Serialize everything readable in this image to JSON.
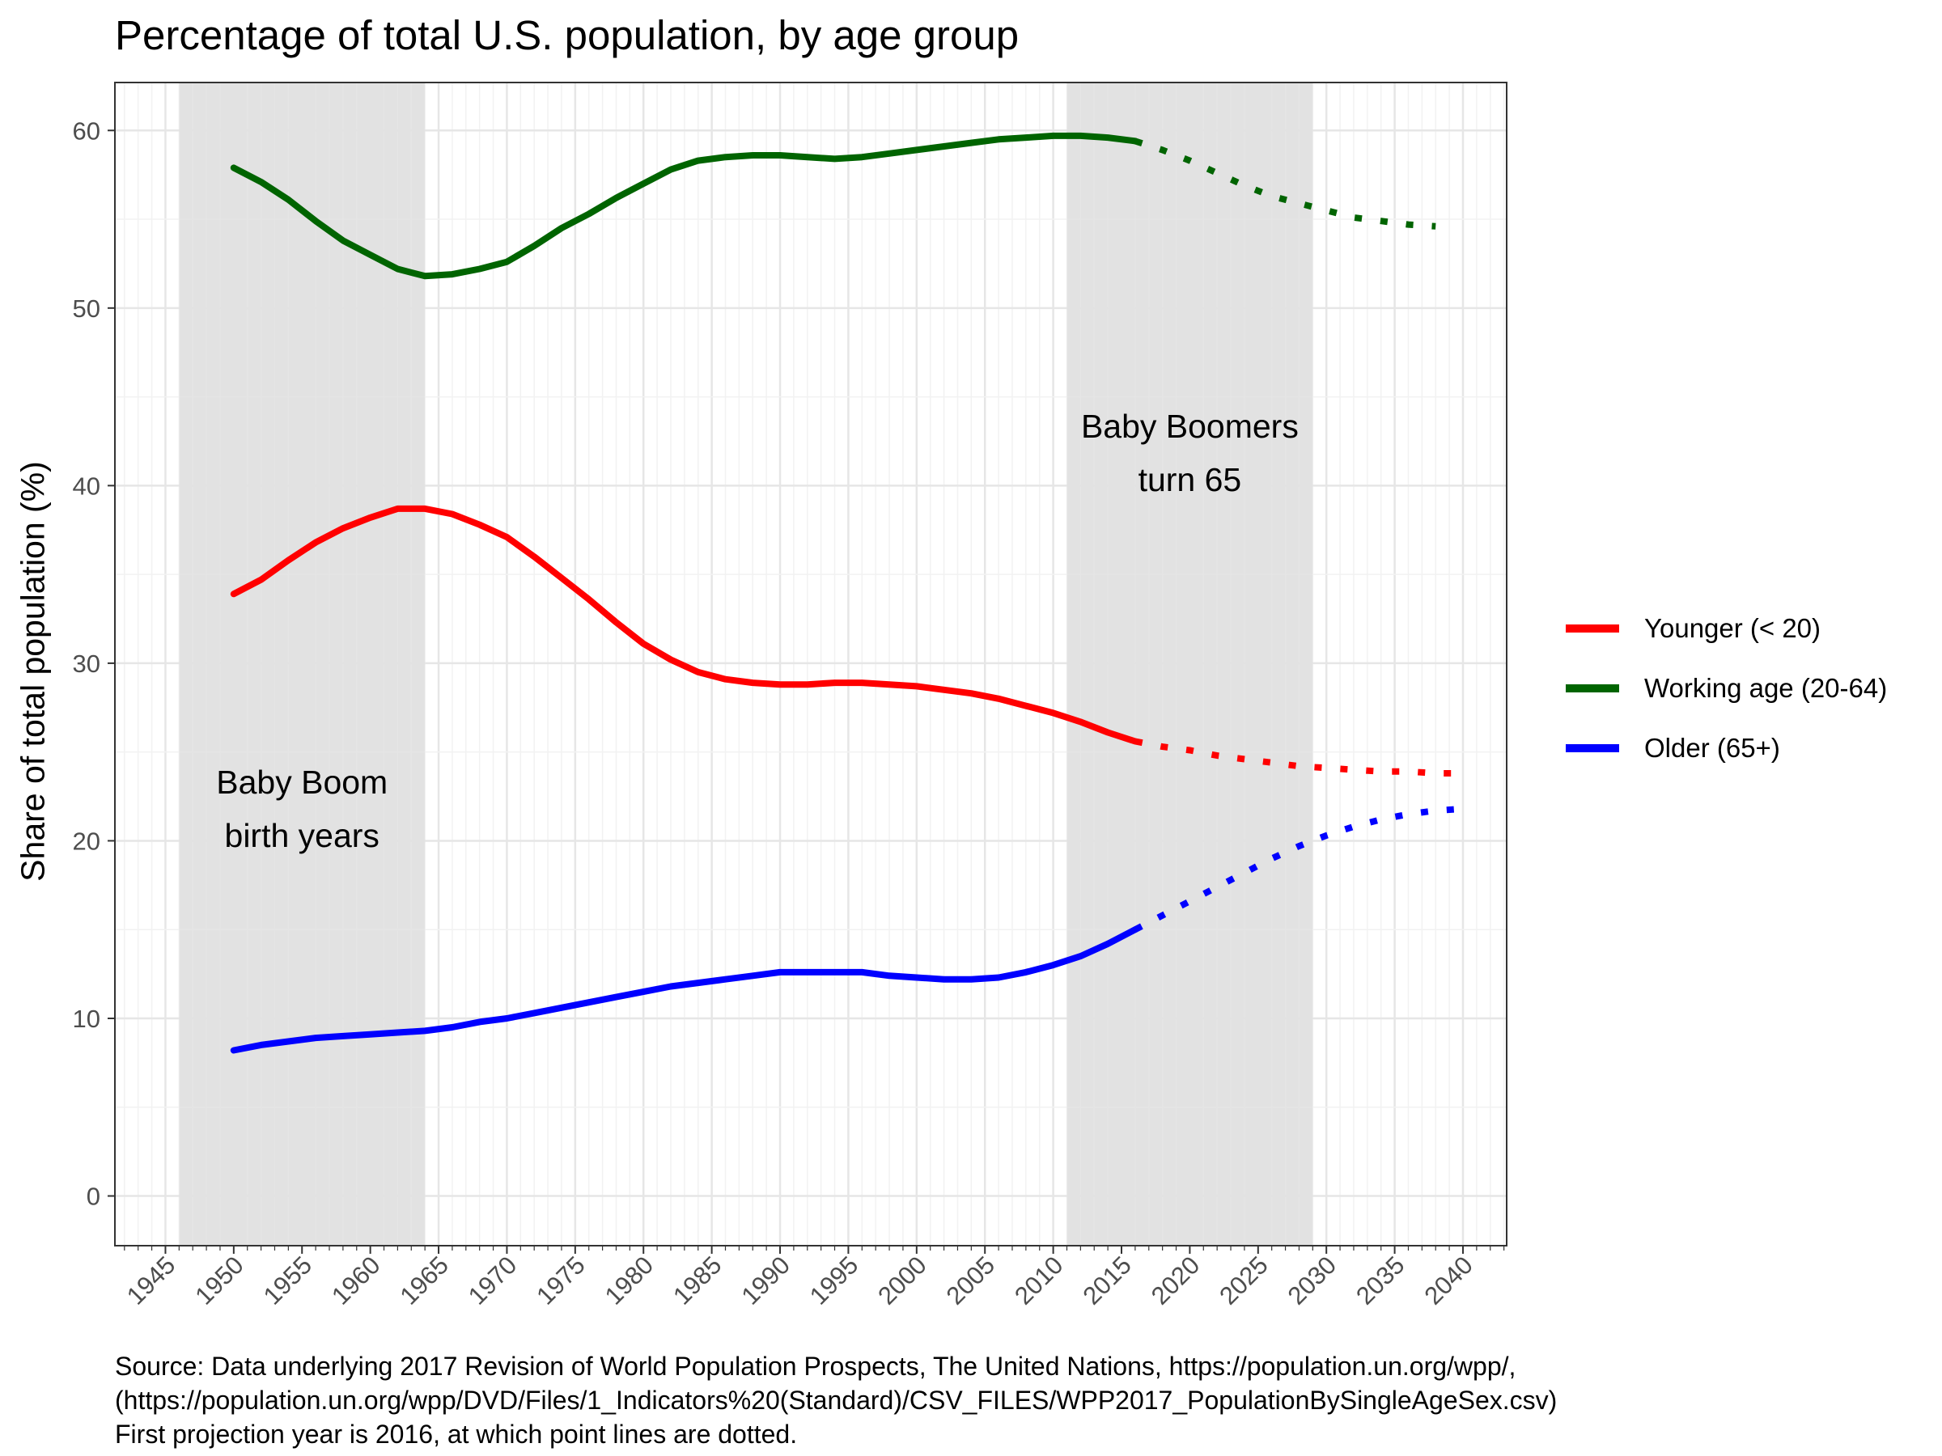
{
  "chart_data": {
    "type": "line",
    "title": "Percentage of total U.S. population, by age group",
    "ylabel": "Share of total population (%)",
    "xlabel": "",
    "xlim": [
      1941.3,
      2043.2
    ],
    "ylim": [
      -2.8,
      62.7
    ],
    "xticks": [
      1945,
      1950,
      1955,
      1960,
      1965,
      1970,
      1975,
      1980,
      1985,
      1990,
      1995,
      2000,
      2005,
      2010,
      2015,
      2020,
      2025,
      2030,
      2035,
      2040
    ],
    "xtick_labels": [
      "1945",
      "1950",
      "1955",
      "1960",
      "1965",
      "1970",
      "1975",
      "1980",
      "1985",
      "1990",
      "1995",
      "2000",
      "2005",
      "2010",
      "2015",
      "2020",
      "2025",
      "2030",
      "2035",
      "2040"
    ],
    "yticks": [
      0,
      10,
      20,
      30,
      40,
      50,
      60
    ],
    "ytick_labels": [
      "0",
      "10",
      "20",
      "30",
      "40",
      "50",
      "60"
    ],
    "grid": true,
    "legend_position": "right",
    "projection_start": 2016,
    "shaded_periods": [
      {
        "start": 1946,
        "end": 1964,
        "label_lines": [
          "Baby Boom",
          "birth years"
        ],
        "label_y": 23
      },
      {
        "start": 2011,
        "end": 2029,
        "label_lines": [
          "Baby Boomers",
          "turn 65"
        ],
        "label_y": 43
      }
    ],
    "series": [
      {
        "name": "Younger (< 20)",
        "color": "#ff0000",
        "x": [
          1950,
          1952,
          1954,
          1956,
          1958,
          1960,
          1962,
          1964,
          1966,
          1968,
          1970,
          1972,
          1974,
          1976,
          1978,
          1980,
          1982,
          1984,
          1986,
          1988,
          1990,
          1992,
          1994,
          1996,
          1998,
          2000,
          2002,
          2004,
          2006,
          2008,
          2010,
          2012,
          2014,
          2016,
          2018,
          2020,
          2022,
          2024,
          2026,
          2028,
          2030,
          2032,
          2034,
          2036,
          2038,
          2040
        ],
        "values": [
          33.9,
          34.7,
          35.8,
          36.8,
          37.6,
          38.2,
          38.7,
          38.7,
          38.4,
          37.8,
          37.1,
          36.0,
          34.8,
          33.6,
          32.3,
          31.1,
          30.2,
          29.5,
          29.1,
          28.9,
          28.8,
          28.8,
          28.9,
          28.9,
          28.8,
          28.7,
          28.5,
          28.3,
          28.0,
          27.6,
          27.2,
          26.7,
          26.1,
          25.6,
          25.3,
          25.1,
          24.8,
          24.6,
          24.4,
          24.2,
          24.1,
          24.0,
          23.9,
          23.9,
          23.8,
          23.8
        ]
      },
      {
        "name": "Working age (20-64)",
        "color": "#006400",
        "x": [
          1950,
          1952,
          1954,
          1956,
          1958,
          1960,
          1962,
          1964,
          1966,
          1968,
          1970,
          1972,
          1974,
          1976,
          1978,
          1980,
          1982,
          1984,
          1986,
          1988,
          1990,
          1992,
          1994,
          1996,
          1998,
          2000,
          2002,
          2004,
          2006,
          2008,
          2010,
          2012,
          2014,
          2016,
          2018,
          2020,
          2022,
          2024,
          2026,
          2028,
          2030,
          2032,
          2034,
          2036,
          2038
        ],
        "values": [
          57.9,
          57.1,
          56.1,
          54.9,
          53.8,
          53.0,
          52.2,
          51.8,
          51.9,
          52.2,
          52.6,
          53.5,
          54.5,
          55.3,
          56.2,
          57.0,
          57.8,
          58.3,
          58.5,
          58.6,
          58.6,
          58.5,
          58.4,
          58.5,
          58.7,
          58.9,
          59.1,
          59.3,
          59.5,
          59.6,
          59.7,
          59.7,
          59.6,
          59.4,
          58.9,
          58.3,
          57.6,
          56.9,
          56.3,
          55.9,
          55.5,
          55.1,
          54.9,
          54.7,
          54.6
        ]
      },
      {
        "name": "Older (65+)",
        "color": "#0000ff",
        "x": [
          1950,
          1952,
          1954,
          1956,
          1958,
          1960,
          1962,
          1964,
          1966,
          1968,
          1970,
          1972,
          1974,
          1976,
          1978,
          1980,
          1982,
          1984,
          1986,
          1988,
          1990,
          1992,
          1994,
          1996,
          1998,
          2000,
          2002,
          2004,
          2006,
          2008,
          2010,
          2012,
          2014,
          2016,
          2018,
          2020,
          2022,
          2024,
          2026,
          2028,
          2030,
          2032,
          2034,
          2036,
          2038,
          2040
        ],
        "values": [
          8.2,
          8.5,
          8.7,
          8.9,
          9.0,
          9.1,
          9.2,
          9.3,
          9.5,
          9.8,
          10.0,
          10.3,
          10.6,
          10.9,
          11.2,
          11.5,
          11.8,
          12.0,
          12.2,
          12.4,
          12.6,
          12.6,
          12.6,
          12.6,
          12.4,
          12.3,
          12.2,
          12.2,
          12.3,
          12.6,
          13.0,
          13.5,
          14.2,
          15.0,
          15.8,
          16.6,
          17.4,
          18.2,
          19.0,
          19.7,
          20.3,
          20.8,
          21.2,
          21.5,
          21.7,
          21.8
        ]
      }
    ],
    "caption_lines": [
      "Source: Data underlying 2017 Revision of World Population Prospects, The United Nations, https://population.un.org/wpp/,",
      "(https://population.un.org/wpp/DVD/Files/1_Indicators%20(Standard)/CSV_FILES/WPP2017_PopulationBySingleAgeSex.csv)",
      "First projection year is 2016, at which point lines are dotted."
    ]
  }
}
